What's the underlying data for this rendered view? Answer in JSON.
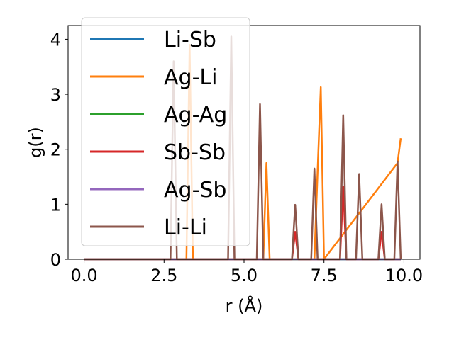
{
  "chart_data": {
    "type": "line",
    "title": "",
    "xlabel": "r (Å)",
    "ylabel": "g(r)",
    "xlim": [
      -0.5,
      10.5
    ],
    "ylim": [
      0,
      4.25
    ],
    "xticks": [
      0.0,
      2.5,
      5.0,
      7.5,
      10.0
    ],
    "xtick_labels": [
      "0.0",
      "2.5",
      "5.0",
      "7.5",
      "10.0"
    ],
    "yticks": [
      0,
      1,
      2,
      3,
      4
    ],
    "ytick_labels": [
      "0",
      "1",
      "2",
      "3",
      "4"
    ],
    "legend_position": "top-left",
    "grid": false,
    "series": [
      {
        "name": "Li-Sb",
        "color": "#1f77b4",
        "x": [
          0,
          9.9
        ],
        "y": [
          0,
          0
        ]
      },
      {
        "name": "Ag-Li",
        "color": "#ff7f0e",
        "x": [
          0,
          3.2,
          3.3,
          3.4,
          3.5,
          5.6,
          5.7,
          5.8,
          7.2,
          7.3,
          7.4,
          7.5,
          9.8,
          9.9
        ],
        "y": [
          0,
          0,
          3.9,
          0,
          0,
          0,
          1.75,
          0,
          0,
          1.6,
          3.13,
          0,
          1.75,
          2.2
        ]
      },
      {
        "name": "Ag-Ag",
        "color": "#2ca02c",
        "x": [
          0,
          9.9
        ],
        "y": [
          0,
          0
        ]
      },
      {
        "name": "Sb-Sb",
        "color": "#d62728",
        "x": [
          0,
          6.5,
          6.6,
          6.7,
          8.0,
          8.1,
          8.2,
          9.2,
          9.3,
          9.4,
          9.9
        ],
        "y": [
          0,
          0,
          0.5,
          0,
          0,
          1.32,
          0,
          0,
          0.5,
          0,
          0
        ]
      },
      {
        "name": "Ag-Sb",
        "color": "#9467bd",
        "x": [
          0,
          9.9
        ],
        "y": [
          0,
          0
        ]
      },
      {
        "name": "Li-Li",
        "color": "#8c564b",
        "x": [
          0,
          2.7,
          2.8,
          2.9,
          4.5,
          4.6,
          4.7,
          5.4,
          5.5,
          5.6,
          6.5,
          6.6,
          6.7,
          7.1,
          7.2,
          7.3,
          8.0,
          8.1,
          8.2,
          8.5,
          8.6,
          8.7,
          9.2,
          9.3,
          9.4,
          9.7,
          9.8,
          9.9
        ],
        "y": [
          0,
          0,
          3.6,
          0,
          0,
          4.05,
          0,
          0,
          2.82,
          0,
          0,
          0.99,
          0,
          0,
          1.65,
          0,
          0,
          2.62,
          0,
          0,
          1.55,
          0,
          0,
          1.0,
          0,
          0,
          1.78,
          0
        ]
      }
    ]
  }
}
